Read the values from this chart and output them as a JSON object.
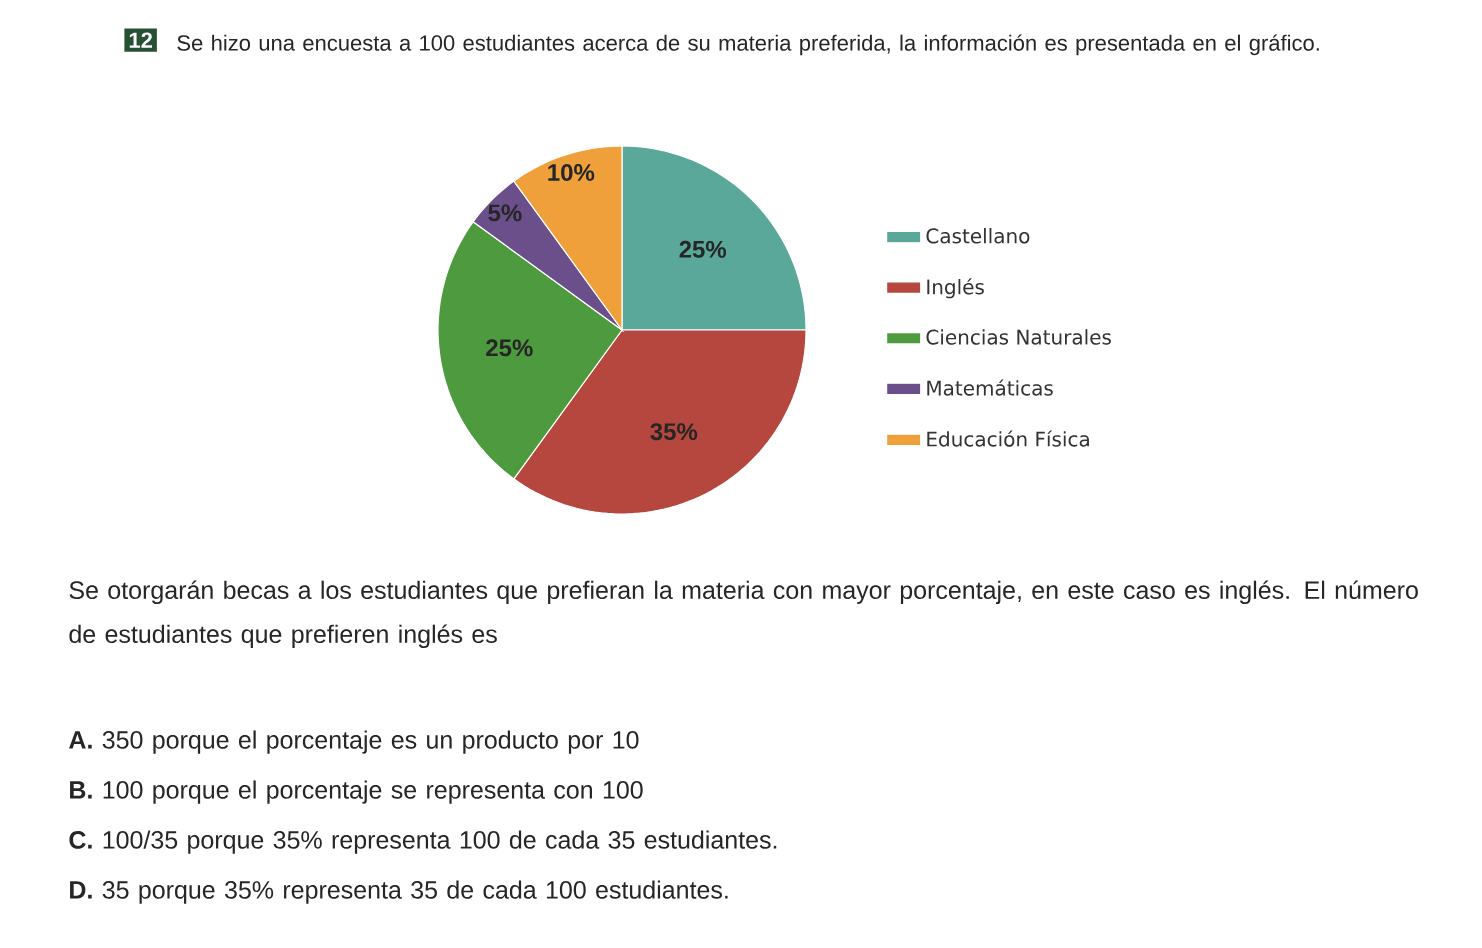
{
  "chart_data": {
    "type": "pie",
    "title": "Se hizo una encuesta a 100 estudiantes acerca de su materia preferida, la información es presentada en el gráfico.",
    "categories": [
      "Castellano",
      "Inglés",
      "Ciencias Naturales",
      "Matemáticas",
      "Educación Física"
    ],
    "values": [
      25,
      35,
      25,
      5,
      10
    ],
    "value_labels": [
      "25%",
      "35%",
      "25%",
      "5%",
      "10%"
    ],
    "colors": [
      "#5aa89a",
      "#b5473e",
      "#4e9a3e",
      "#6a4f8a",
      "#f0a03a"
    ],
    "legend": "right",
    "annotations": [
      "12",
      "Se otorgarán becas a los estudiantes que prefieran la materia con mayor porcentaje, en este caso es inglés. El número de estudiantes que prefieren inglés es",
      "**A.** 350 porque el porcentaje es un producto por 10",
      "**B.** 100 porque el porcentaje se representa con 100",
      "**C.** 100/35 porque 35% representa 100 de cada 35 estudiantes.",
      "**D.** 35 porque 35% representa 35 de cada 100 estudiantes."
    ]
  }
}
